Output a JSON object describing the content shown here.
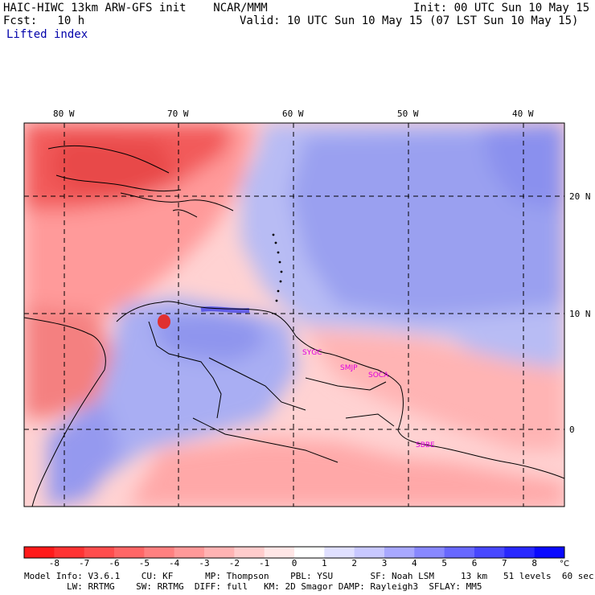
{
  "header": {
    "model_title": "HAIC-HIWC 13km ARW-GFS init    NCAR/MMM",
    "init": "Init: 00 UTC Sun 10 May 15",
    "fcst": "Fcst:   10 h",
    "valid": "Valid: 10 UTC Sun 10 May 15 (07 LST Sun 10 May 15)",
    "field": "Lifted index"
  },
  "map": {
    "lon_labels": [
      "80 W",
      "70 W",
      "60 W",
      "50 W",
      "40 W"
    ],
    "lat_labels": [
      "20 N",
      "10 N",
      "0"
    ],
    "stations": [
      "SYGC",
      "SMJP",
      "SOCA",
      "SBBE"
    ]
  },
  "colorbar": {
    "labels": [
      "-8",
      "-7",
      "-6",
      "-5",
      "-4",
      "-3",
      "-2",
      "-1",
      "0",
      "1",
      "2",
      "3",
      "4",
      "5",
      "6",
      "7",
      "8"
    ],
    "unit": "°C",
    "colors": [
      "#ff1a1a",
      "#ff3333",
      "#ff4d4d",
      "#ff6666",
      "#ff8080",
      "#ff9999",
      "#ffb3b3",
      "#ffcccc",
      "#ffe6e6",
      "#ffffff",
      "#e0e0ff",
      "#c8c8ff",
      "#a8a8ff",
      "#8888ff",
      "#6868ff",
      "#4848ff",
      "#2828ff",
      "#0a0aff"
    ]
  },
  "footer": {
    "line1": "Model Info: V3.6.1    CU: KF      MP: Thompson    PBL: YSU       SF: Noah LSM     13 km   51 levels  60 sec",
    "line2": "        LW: RRTMG    SW: RRTMG  DIFF: full   KM: 2D Smagor DAMP: Rayleigh3  SFLAY: MM5"
  }
}
